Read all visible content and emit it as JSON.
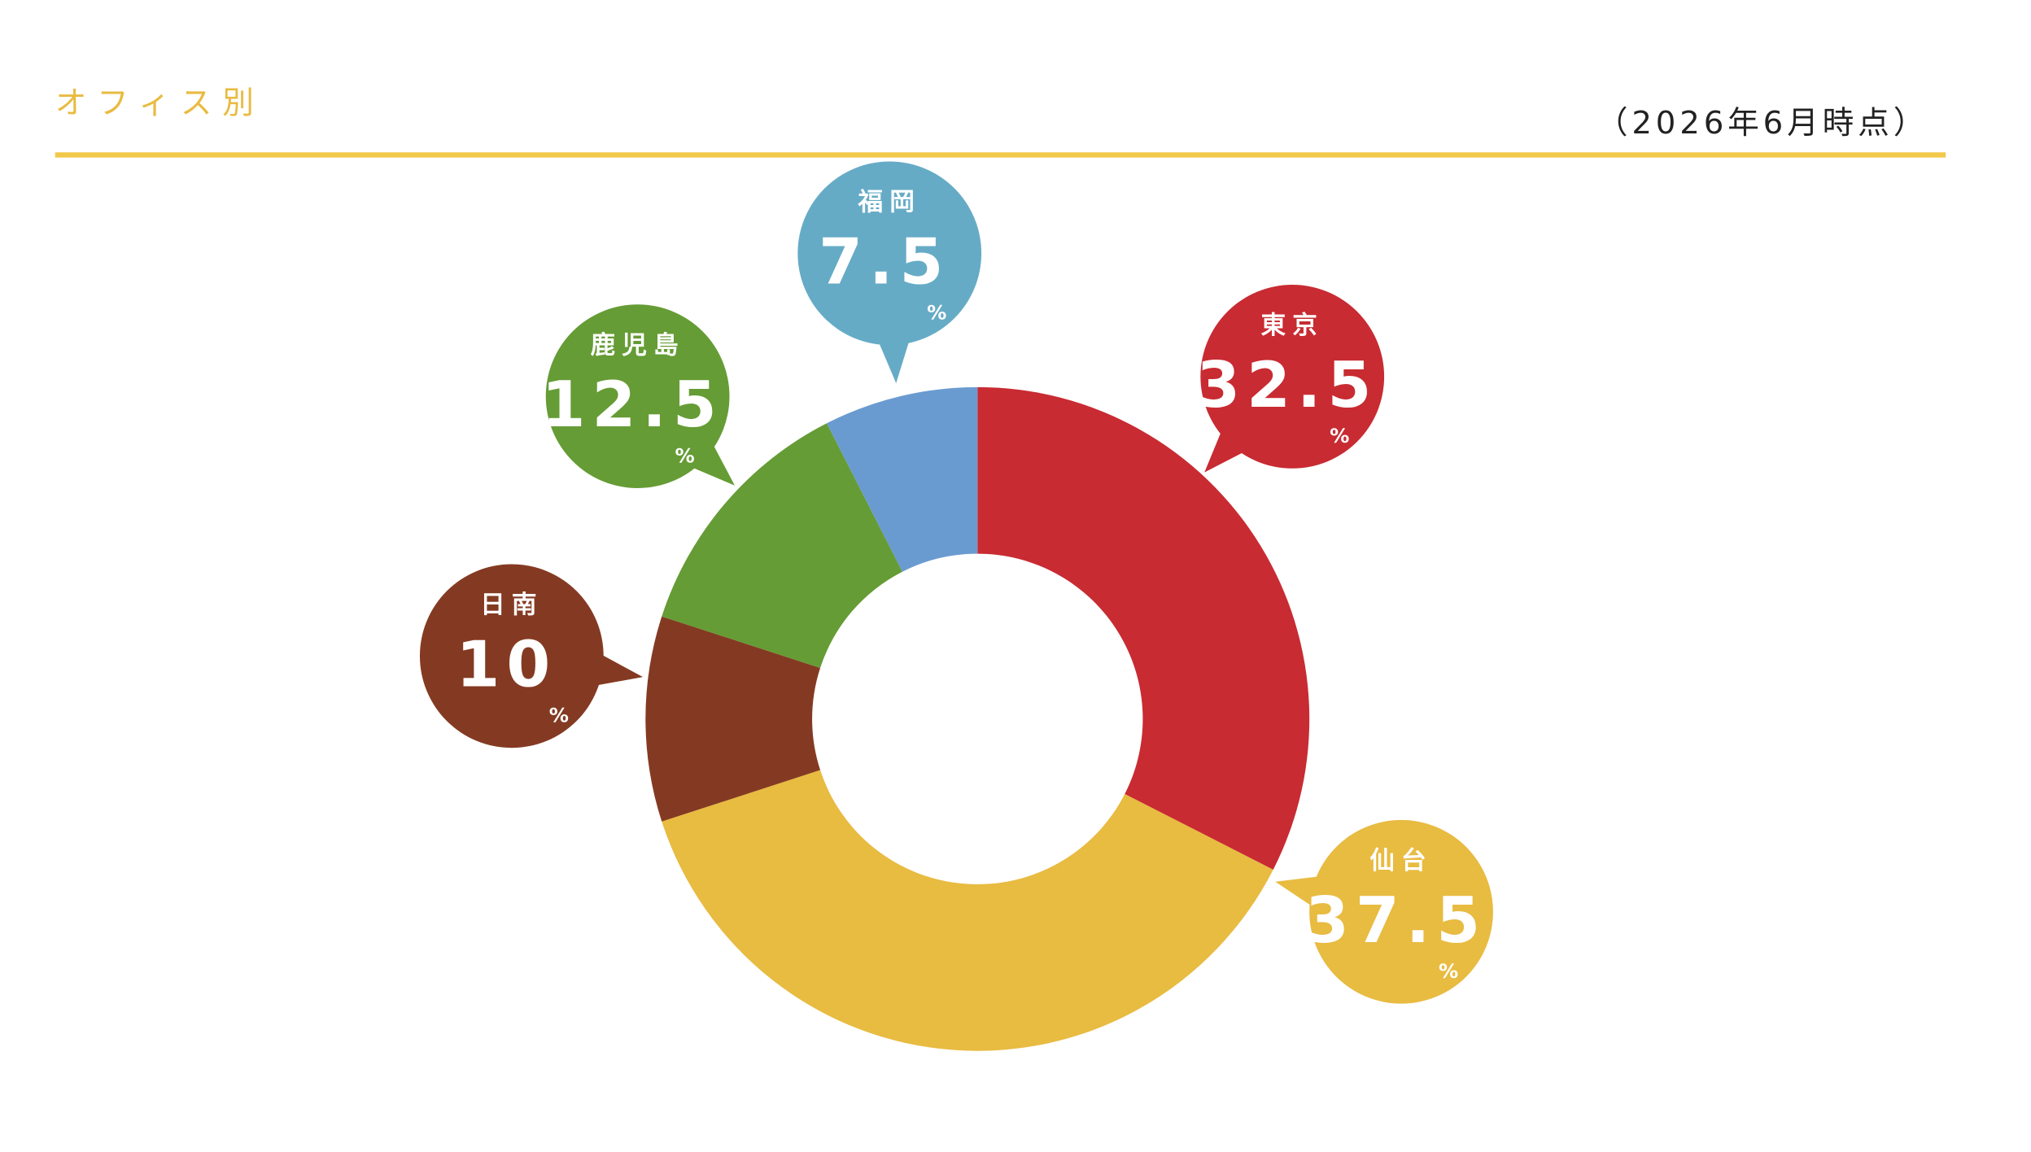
{
  "chart_data": {
    "type": "donut",
    "title": "オフィス別",
    "subtitle": "（2026年6月時点）",
    "categories": [
      "東京",
      "仙台",
      "日南",
      "鹿児島",
      "福岡"
    ],
    "values": [
      32.5,
      37.5,
      10,
      12.5,
      7.5
    ],
    "unit": "%",
    "colors": [
      "#c82b32",
      "#e8bb41",
      "#843a22",
      "#659c35",
      "#6a9bd0"
    ],
    "label_colors": [
      "#c82b32",
      "#e8bb41",
      "#843a22",
      "#659c35",
      "#66abc6"
    ]
  }
}
